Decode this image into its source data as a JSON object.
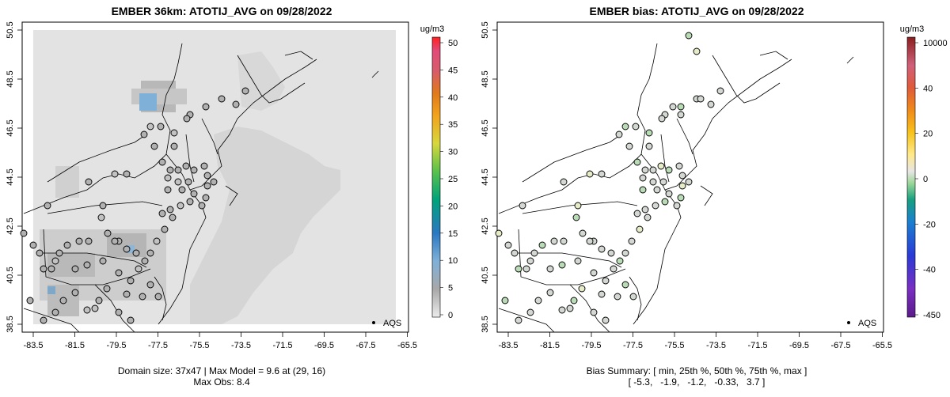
{
  "left_panel": {
    "title": "EMBER 36km: ATOTIJ_AVG on 09/28/2022",
    "caption_line1": "Domain size: 37x47 | Max Model = 9.6 at (29, 16)",
    "caption_line2": "Max Obs: 8.4",
    "colorbar_unit": "ug/m3",
    "colorbar_ticks": [
      "50",
      "45",
      "40",
      "35",
      "30",
      "25",
      "20",
      "15",
      "10",
      "5",
      "0"
    ],
    "legend_label": "AQS"
  },
  "right_panel": {
    "title": "EMBER bias: ATOTIJ_AVG on 09/28/2022",
    "caption_line1": "Bias Summary: [ min, 25th %, 50th %, 75th %, max ]",
    "caption_line2": "[ -5.3,   -1.9,   -1.2,   -0.33,   3.7 ]",
    "colorbar_unit": "ug/m3",
    "colorbar_ticks": [
      "10000",
      "40",
      "20",
      "0",
      "-20",
      "-40",
      "-450"
    ],
    "legend_label": "AQS"
  },
  "axes": {
    "x_ticks": [
      "-83.5",
      "-81.5",
      "-79.5",
      "-77.5",
      "-75.5",
      "-73.5",
      "-71.5",
      "-69.5",
      "-67.5",
      "-65.5"
    ],
    "y_ticks": [
      "38.5",
      "40.5",
      "42.5",
      "44.5",
      "46.5",
      "48.5",
      "50.5"
    ]
  },
  "colors": {
    "model_background": "#e3e3e3",
    "model_low": "#d2d2d2",
    "model_mid": "#a9a9a9",
    "model_high": "#7fb0d8",
    "obs_fill": "#b4b4b4",
    "bias_fill": "#d3d8d3",
    "bias_fill_green": "#b9dcb7"
  }
}
